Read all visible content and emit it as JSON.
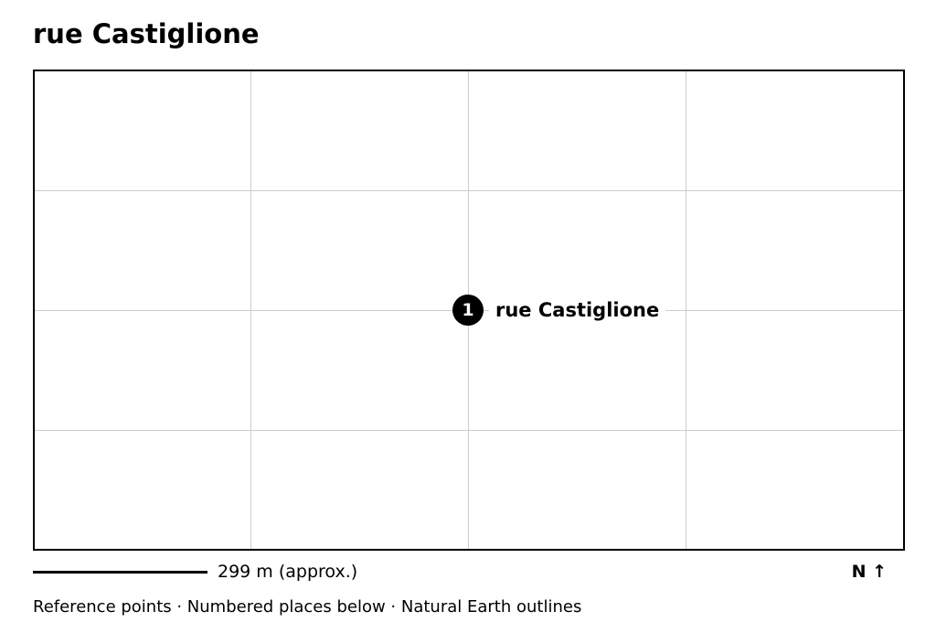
{
  "title": "rue Castiglione",
  "map": {
    "places": [
      {
        "number": "1",
        "name": "rue Castiglione"
      }
    ]
  },
  "scale": {
    "label": "299 m (approx.)"
  },
  "north": {
    "label": "N ↑"
  },
  "footer": {
    "note": "Reference points · Numbered places below · Natural Earth outlines"
  }
}
